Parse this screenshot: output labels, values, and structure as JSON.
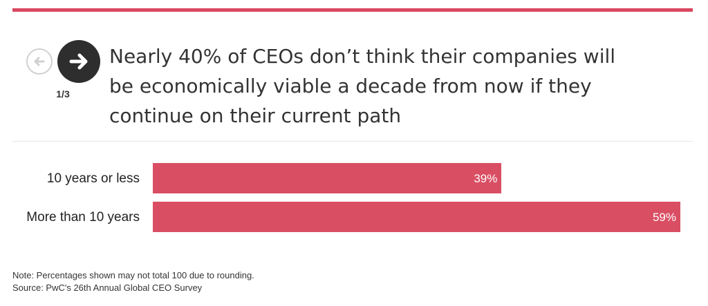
{
  "nav": {
    "page_indicator": "1/3",
    "prev_icon": "arrow-left-icon",
    "next_icon": "arrow-right-icon"
  },
  "headline": "Nearly 40% of CEOs don’t think their companies will be economically viable a decade from now if they continue on their current path",
  "colors": {
    "accent": "#d8475f",
    "bar": "#d94e63",
    "next_button": "#2e2e2e"
  },
  "chart_data": {
    "type": "bar",
    "orientation": "horizontal",
    "categories": [
      "10 years or less",
      "More than 10 years"
    ],
    "values": [
      39,
      59
    ],
    "value_labels": [
      "39%",
      "59%"
    ],
    "xlim": [
      0,
      59
    ],
    "grid": false,
    "title": "",
    "xlabel": "",
    "ylabel": ""
  },
  "footer": {
    "note": "Note: Percentages shown may not total 100 due to rounding.",
    "source": "Source: PwC's 26th Annual Global CEO Survey"
  }
}
